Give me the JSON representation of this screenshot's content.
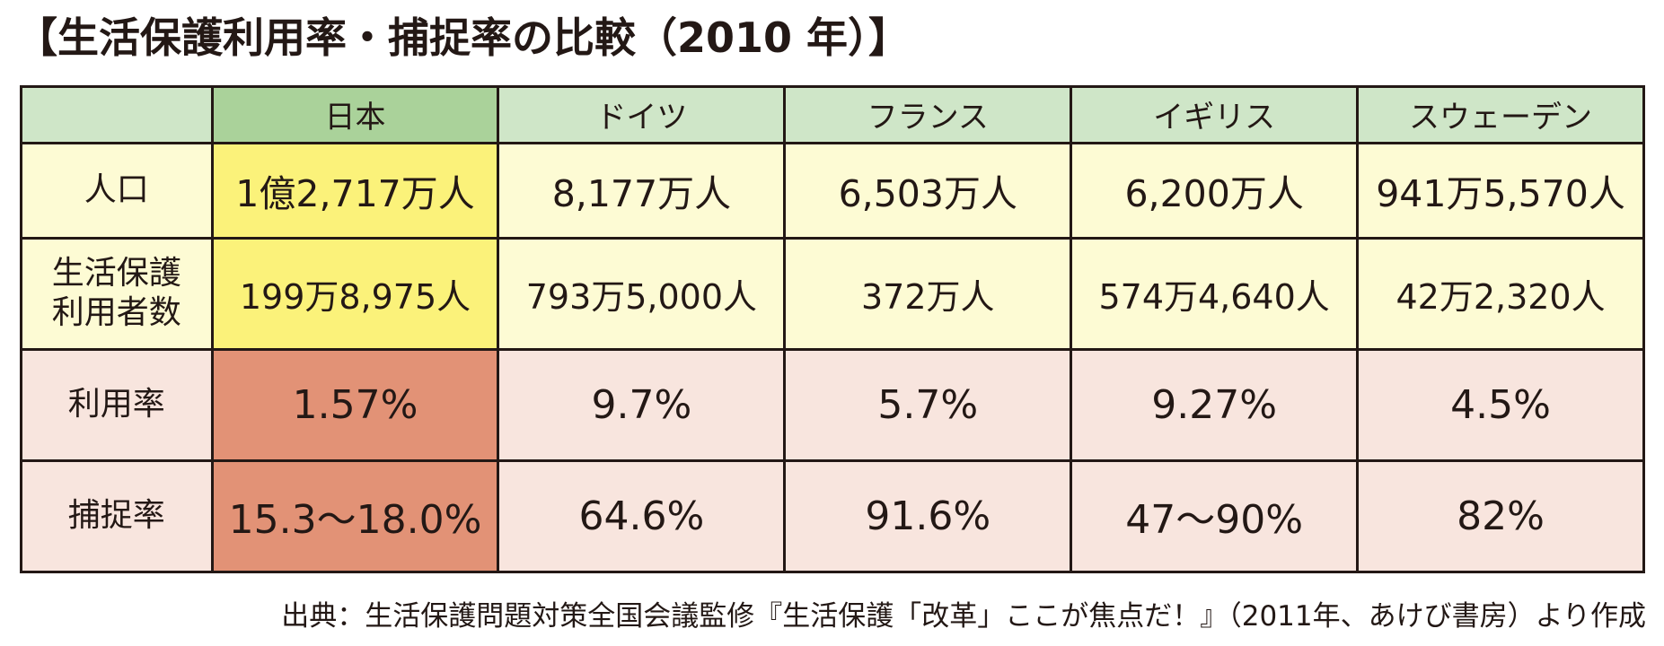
{
  "title": "【生活保護利用率・捕捉率の比較（2010 年）】",
  "table": {
    "header": {
      "corner": "",
      "countries": [
        "日本",
        "ドイツ",
        "フランス",
        "イギリス",
        "スウェーデン"
      ]
    },
    "rows": [
      {
        "label": "人口",
        "values": [
          "1億2,717万人",
          "8,177万人",
          "6,503万人",
          "6,200万人",
          "941万5,570人"
        ]
      },
      {
        "label_line1": "生活保護",
        "label_line2": "利用者数",
        "values": [
          "199万8,975人",
          "793万5,000人",
          "372万人",
          "574万4,640人",
          "42万2,320人"
        ]
      },
      {
        "label": "利用率",
        "values": [
          "1.57%",
          "9.7%",
          "5.7%",
          "9.27%",
          "4.5%"
        ]
      },
      {
        "label": "捕捉率",
        "values": [
          "15.3～18.0%",
          "64.6%",
          "91.6%",
          "47～90%",
          "82%"
        ]
      }
    ]
  },
  "source": "出典：生活保護問題対策全国会議監修『生活保護「改革」ここが焦点だ！』（2011年、あけび書房）より作成",
  "colors": {
    "header_bg": "#cfe6c8",
    "header_japan_bg": "#aad29a",
    "yellow_bg": "#fdfbd4",
    "yellow_japan_bg": "#fbf27a",
    "pink_bg": "#f8e5de",
    "pink_japan_bg": "#e29276",
    "border": "#231815"
  }
}
